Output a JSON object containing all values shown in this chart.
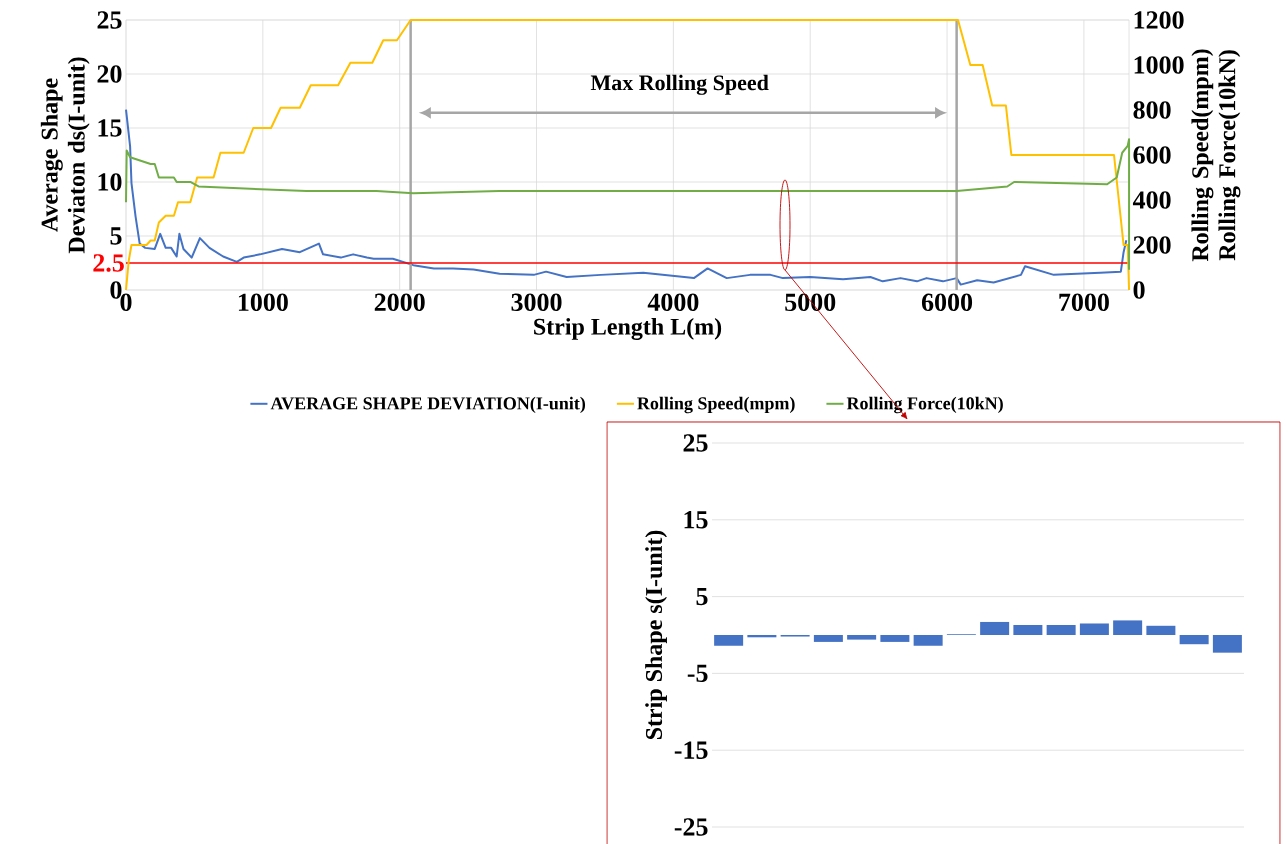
{
  "chart_data": [
    {
      "type": "line",
      "xlabel": "Strip Length L(m)",
      "ylabel": "Average Shape Deviaton ds(I-unit)",
      "y2label": "Rolling Speed(mpm) Rolling Force(10kN)",
      "xlim": [
        0,
        7330
      ],
      "xticks": [
        0,
        1000,
        2000,
        3000,
        4000,
        5000,
        6000,
        7000
      ],
      "ylim": [
        0,
        25
      ],
      "yticks": [
        0,
        5,
        10,
        15,
        20,
        25
      ],
      "y2lim": [
        0,
        1200
      ],
      "y2ticks": [
        0,
        200,
        400,
        600,
        800,
        1000,
        1200
      ],
      "grid": true,
      "legend": "bottom",
      "annotations": [
        "Max Rolling Speed"
      ],
      "ref_lines": [
        {
          "axis": "x",
          "value": 2080,
          "color": "#a6a6a6"
        },
        {
          "axis": "x",
          "value": 6070,
          "color": "#a6a6a6"
        },
        {
          "axis": "y",
          "value": 2.5,
          "label": "2.5",
          "color": "#ff0000"
        }
      ],
      "series": [
        {
          "name": "AVERAGE SHAPE DEVIATION(I-unit)",
          "color": "#4472c4",
          "x": [
            0,
            30,
            40,
            70,
            100,
            140,
            210,
            250,
            290,
            330,
            370,
            390,
            420,
            480,
            540,
            610,
            710,
            810,
            860,
            980,
            1140,
            1270,
            1410,
            1440,
            1570,
            1660,
            1760,
            1810,
            1950,
            2100,
            2250,
            2390,
            2540,
            2730,
            2980,
            3070,
            3220,
            3470,
            3780,
            4150,
            4250,
            4390,
            4560,
            4710,
            4800,
            5000,
            5240,
            5440,
            5530,
            5660,
            5780,
            5850,
            5970,
            6070,
            6100,
            6220,
            6340,
            6540,
            6570,
            6780,
            7120,
            7270,
            7290,
            7310
          ],
          "values": [
            16.7,
            13.3,
            9.9,
            6.8,
            4.3,
            3.9,
            3.8,
            5.2,
            3.9,
            3.9,
            3.1,
            5.2,
            3.8,
            3.0,
            4.8,
            3.9,
            3.1,
            2.6,
            3.0,
            3.3,
            3.8,
            3.5,
            4.3,
            3.3,
            3.0,
            3.3,
            3.0,
            2.9,
            2.9,
            2.3,
            2.0,
            2.0,
            1.9,
            1.5,
            1.4,
            1.7,
            1.2,
            1.4,
            1.6,
            1.1,
            2.0,
            1.1,
            1.4,
            1.4,
            1.1,
            1.2,
            1.0,
            1.2,
            0.8,
            1.1,
            0.8,
            1.1,
            0.8,
            1.1,
            0.5,
            0.9,
            0.7,
            1.4,
            2.2,
            1.4,
            1.6,
            1.7,
            3.5,
            4.6
          ]
        },
        {
          "name": "Rolling Speed(mpm)",
          "color": "#ffc000",
          "axis": "y2",
          "x": [
            0,
            20,
            40,
            150,
            180,
            210,
            240,
            290,
            350,
            380,
            470,
            520,
            640,
            690,
            860,
            930,
            1060,
            1130,
            1270,
            1350,
            1550,
            1640,
            1800,
            1880,
            1980,
            2080,
            6080,
            6170,
            6260,
            6330,
            6430,
            6470,
            7220,
            7290,
            7320,
            7330
          ],
          "values": [
            0,
            130,
            200,
            200,
            220,
            220,
            300,
            330,
            330,
            390,
            390,
            500,
            500,
            610,
            610,
            720,
            720,
            810,
            810,
            910,
            910,
            1010,
            1010,
            1110,
            1110,
            1200,
            1200,
            1000,
            1000,
            820,
            820,
            600,
            600,
            200,
            200,
            0
          ]
        },
        {
          "name": "Rolling Force(10kN)",
          "color": "#70ad47",
          "axis": "y2",
          "x": [
            0,
            5,
            30,
            180,
            210,
            240,
            350,
            370,
            470,
            530,
            910,
            1320,
            1830,
            2100,
            2730,
            4200,
            5170,
            6070,
            6440,
            6490,
            7170,
            7240,
            7280,
            7320,
            7330,
            7330
          ],
          "values": [
            390,
            620,
            590,
            560,
            560,
            500,
            500,
            480,
            480,
            460,
            450,
            440,
            440,
            430,
            440,
            440,
            440,
            440,
            460,
            480,
            470,
            500,
            610,
            640,
            670,
            90
          ]
        }
      ]
    },
    {
      "type": "bar",
      "ylabel": "Strip Shape s(I-unit)",
      "categories": [
        null,
        null,
        null,
        null,
        null,
        null,
        null,
        null,
        null,
        null,
        null,
        null,
        null,
        null,
        null,
        null
      ],
      "values": [
        -1.4,
        -0.3,
        -0.2,
        -0.9,
        -0.6,
        -0.9,
        -1.4,
        0.1,
        1.7,
        1.3,
        1.3,
        1.5,
        1.9,
        1.2,
        -1.2,
        -2.3
      ],
      "color": "#4472c4",
      "ylim": [
        -25,
        25
      ],
      "yticks": [
        -25,
        -15,
        -5,
        5,
        15,
        25
      ],
      "grid": "y"
    }
  ]
}
